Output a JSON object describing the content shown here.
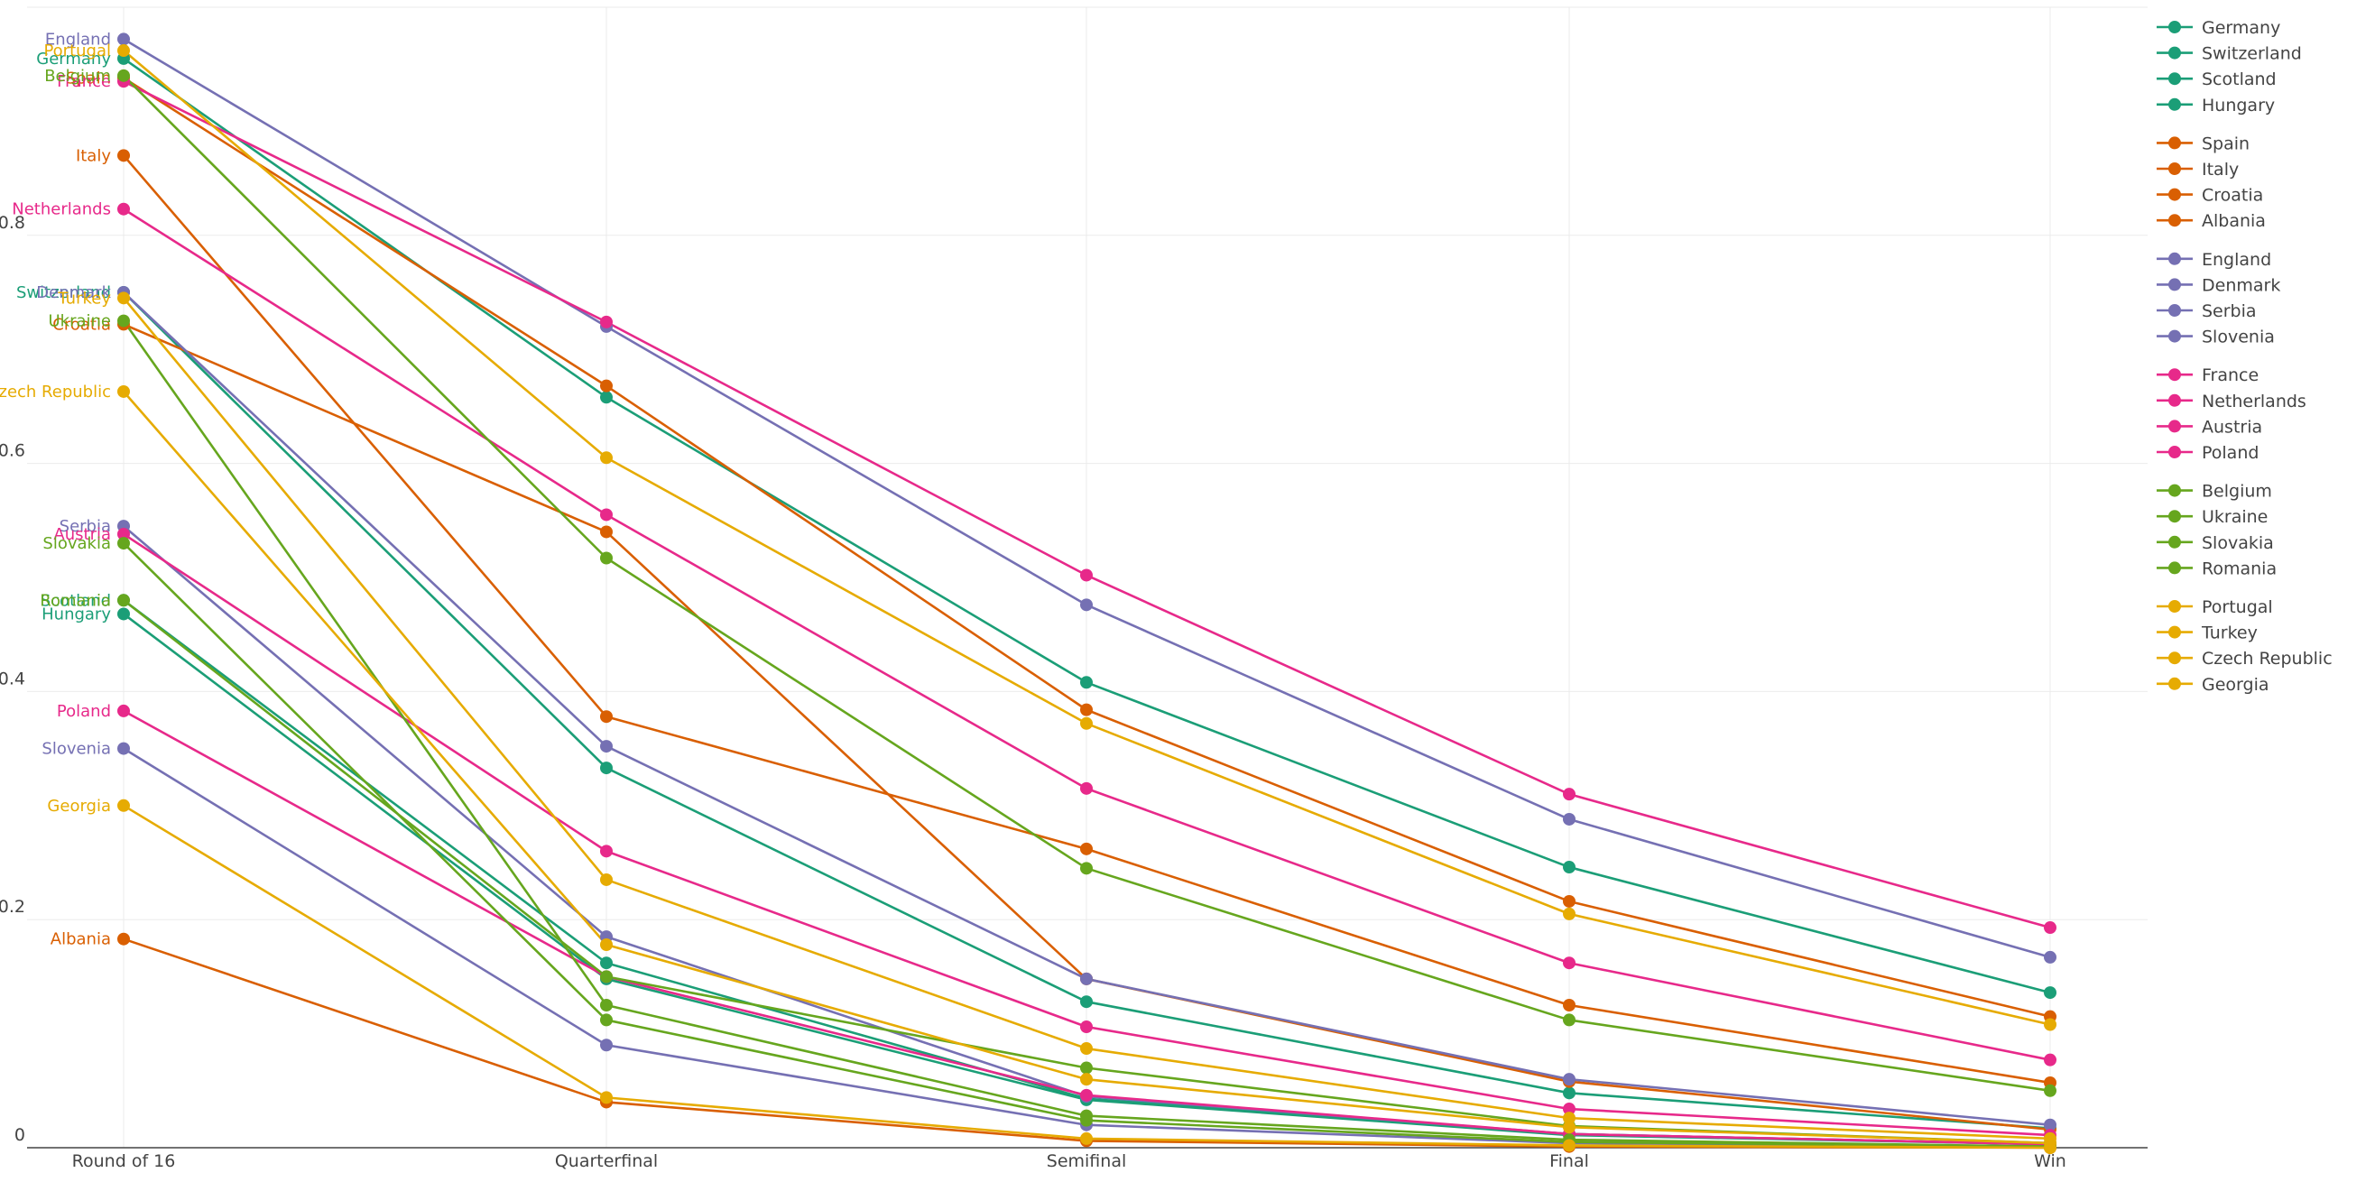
{
  "chart_data": {
    "type": "line",
    "title": "",
    "xlabel": "",
    "ylabel": "",
    "x": [
      "Round of 16",
      "Quarterfinal",
      "Semifinal",
      "Final",
      "Win"
    ],
    "ylim": [
      0,
      1
    ],
    "y_ticks": [
      0,
      0.2,
      0.4,
      0.6,
      0.8,
      1
    ],
    "grid": true,
    "legend_position": "right",
    "start_labels": true,
    "groups": [
      {
        "color": "#1b9e77",
        "series": [
          "Germany",
          "Switzerland",
          "Scotland",
          "Hungary"
        ]
      },
      {
        "color": "#d95f02",
        "series": [
          "Spain",
          "Italy",
          "Croatia",
          "Albania"
        ]
      },
      {
        "color": "#7570b3",
        "series": [
          "England",
          "Denmark",
          "Serbia",
          "Slovenia"
        ]
      },
      {
        "color": "#e7298a",
        "series": [
          "France",
          "Netherlands",
          "Austria",
          "Poland"
        ]
      },
      {
        "color": "#66a61e",
        "series": [
          "Belgium",
          "Ukraine",
          "Slovakia",
          "Romania"
        ]
      },
      {
        "color": "#e6ab02",
        "series": [
          "Portugal",
          "Turkey",
          "Czech Republic",
          "Georgia"
        ]
      }
    ],
    "series": [
      {
        "name": "Germany",
        "values": [
          0.955,
          0.658,
          0.408,
          0.246,
          0.136
        ]
      },
      {
        "name": "Switzerland",
        "values": [
          0.75,
          0.333,
          0.128,
          0.048,
          0.017
        ]
      },
      {
        "name": "Scotland",
        "values": [
          0.48,
          0.162,
          0.043,
          0.012,
          0.003
        ]
      },
      {
        "name": "Hungary",
        "values": [
          0.468,
          0.148,
          0.042,
          0.011,
          0.003
        ]
      },
      {
        "name": "Spain",
        "values": [
          0.938,
          0.668,
          0.384,
          0.216,
          0.115
        ]
      },
      {
        "name": "Italy",
        "values": [
          0.87,
          0.378,
          0.262,
          0.125,
          0.057
        ]
      },
      {
        "name": "Croatia",
        "values": [
          0.722,
          0.54,
          0.148,
          0.058,
          0.016
        ]
      },
      {
        "name": "Albania",
        "values": [
          0.183,
          0.04,
          0.006,
          0.001,
          0.0
        ]
      },
      {
        "name": "England",
        "values": [
          0.972,
          0.72,
          0.476,
          0.288,
          0.167
        ]
      },
      {
        "name": "Denmark",
        "values": [
          0.75,
          0.352,
          0.148,
          0.06,
          0.02
        ]
      },
      {
        "name": "Serbia",
        "values": [
          0.545,
          0.185,
          0.045,
          0.012,
          0.003
        ]
      },
      {
        "name": "Slovenia",
        "values": [
          0.35,
          0.09,
          0.02,
          0.004,
          0.001
        ]
      },
      {
        "name": "France",
        "values": [
          0.935,
          0.724,
          0.502,
          0.31,
          0.193
        ]
      },
      {
        "name": "Netherlands",
        "values": [
          0.823,
          0.555,
          0.315,
          0.162,
          0.077
        ]
      },
      {
        "name": "Austria",
        "values": [
          0.538,
          0.26,
          0.106,
          0.034,
          0.011
        ]
      },
      {
        "name": "Poland",
        "values": [
          0.383,
          0.15,
          0.046,
          0.012,
          0.003
        ]
      },
      {
        "name": "Belgium",
        "values": [
          0.94,
          0.517,
          0.245,
          0.112,
          0.05
        ]
      },
      {
        "name": "Ukraine",
        "values": [
          0.725,
          0.125,
          0.028,
          0.007,
          0.001
        ]
      },
      {
        "name": "Slovakia",
        "values": [
          0.53,
          0.112,
          0.024,
          0.005,
          0.001
        ]
      },
      {
        "name": "Romania",
        "values": [
          0.48,
          0.15,
          0.07,
          0.019,
          0.004
        ]
      },
      {
        "name": "Portugal",
        "values": [
          0.962,
          0.605,
          0.372,
          0.205,
          0.108
        ]
      },
      {
        "name": "Turkey",
        "values": [
          0.745,
          0.235,
          0.087,
          0.026,
          0.008
        ]
      },
      {
        "name": "Czech Republic",
        "values": [
          0.663,
          0.178,
          0.06,
          0.018,
          0.004
        ]
      },
      {
        "name": "Georgia",
        "values": [
          0.3,
          0.044,
          0.008,
          0.002,
          0.0
        ]
      }
    ]
  }
}
